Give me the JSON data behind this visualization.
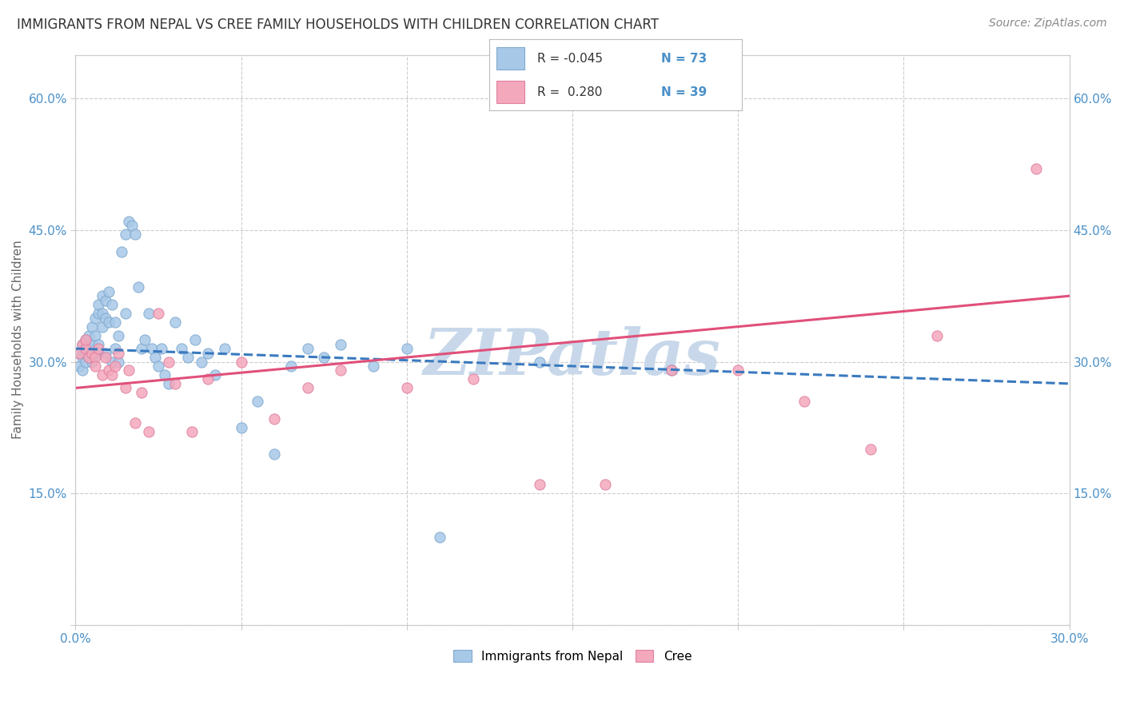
{
  "title": "IMMIGRANTS FROM NEPAL VS CREE FAMILY HOUSEHOLDS WITH CHILDREN CORRELATION CHART",
  "source_text": "Source: ZipAtlas.com",
  "ylabel": "Family Households with Children",
  "xlim": [
    0.0,
    0.3
  ],
  "ylim": [
    0.0,
    0.65
  ],
  "xticks": [
    0.0,
    0.05,
    0.1,
    0.15,
    0.2,
    0.25,
    0.3
  ],
  "xticklabels": [
    "0.0%",
    "",
    "",
    "",
    "",
    "",
    "30.0%"
  ],
  "yticks": [
    0.0,
    0.15,
    0.3,
    0.45,
    0.6
  ],
  "yticklabels": [
    "",
    "15.0%",
    "30.0%",
    "45.0%",
    "60.0%"
  ],
  "blue_color": "#a8c8e8",
  "blue_edge": "#80aad0",
  "pink_color": "#f4a8bc",
  "pink_edge": "#e080a0",
  "blue_line_color": "#3a7abf",
  "pink_line_color": "#e0507a",
  "tick_color": "#4a90c8",
  "grid_color": "#cccccc",
  "watermark_color": "#c8d8ea",
  "nepal_x": [
    0.001,
    0.001,
    0.002,
    0.002,
    0.002,
    0.003,
    0.003,
    0.003,
    0.003,
    0.004,
    0.004,
    0.004,
    0.005,
    0.005,
    0.005,
    0.006,
    0.006,
    0.006,
    0.006,
    0.007,
    0.007,
    0.007,
    0.007,
    0.008,
    0.008,
    0.008,
    0.009,
    0.009,
    0.009,
    0.01,
    0.01,
    0.011,
    0.011,
    0.012,
    0.012,
    0.013,
    0.013,
    0.014,
    0.015,
    0.015,
    0.016,
    0.017,
    0.018,
    0.019,
    0.02,
    0.021,
    0.022,
    0.023,
    0.024,
    0.025,
    0.026,
    0.027,
    0.028,
    0.03,
    0.032,
    0.034,
    0.036,
    0.038,
    0.04,
    0.042,
    0.045,
    0.05,
    0.055,
    0.06,
    0.065,
    0.07,
    0.075,
    0.08,
    0.09,
    0.1,
    0.11,
    0.14,
    0.18
  ],
  "nepal_y": [
    0.31,
    0.295,
    0.32,
    0.305,
    0.29,
    0.315,
    0.3,
    0.325,
    0.31,
    0.33,
    0.305,
    0.315,
    0.34,
    0.3,
    0.32,
    0.35,
    0.31,
    0.33,
    0.31,
    0.355,
    0.365,
    0.32,
    0.31,
    0.355,
    0.375,
    0.34,
    0.31,
    0.37,
    0.35,
    0.38,
    0.345,
    0.3,
    0.365,
    0.345,
    0.315,
    0.3,
    0.33,
    0.425,
    0.445,
    0.355,
    0.46,
    0.455,
    0.445,
    0.385,
    0.315,
    0.325,
    0.355,
    0.315,
    0.305,
    0.295,
    0.315,
    0.285,
    0.275,
    0.345,
    0.315,
    0.305,
    0.325,
    0.3,
    0.31,
    0.285,
    0.315,
    0.225,
    0.255,
    0.195,
    0.295,
    0.315,
    0.305,
    0.32,
    0.295,
    0.315,
    0.1,
    0.3,
    0.29
  ],
  "cree_x": [
    0.001,
    0.002,
    0.003,
    0.003,
    0.004,
    0.005,
    0.006,
    0.006,
    0.007,
    0.008,
    0.009,
    0.01,
    0.011,
    0.012,
    0.013,
    0.015,
    0.016,
    0.018,
    0.02,
    0.022,
    0.025,
    0.028,
    0.03,
    0.035,
    0.04,
    0.05,
    0.06,
    0.07,
    0.08,
    0.1,
    0.12,
    0.14,
    0.16,
    0.18,
    0.2,
    0.22,
    0.24,
    0.26,
    0.29
  ],
  "cree_y": [
    0.31,
    0.32,
    0.315,
    0.325,
    0.305,
    0.31,
    0.305,
    0.295,
    0.315,
    0.285,
    0.305,
    0.29,
    0.285,
    0.295,
    0.31,
    0.27,
    0.29,
    0.23,
    0.265,
    0.22,
    0.355,
    0.3,
    0.275,
    0.22,
    0.28,
    0.3,
    0.235,
    0.27,
    0.29,
    0.27,
    0.28,
    0.16,
    0.16,
    0.29,
    0.29,
    0.255,
    0.2,
    0.33,
    0.52
  ],
  "nepal_trend_x": [
    0.0,
    0.3
  ],
  "nepal_trend_y": [
    0.315,
    0.275
  ],
  "cree_trend_x": [
    0.0,
    0.3
  ],
  "cree_trend_y": [
    0.27,
    0.375
  ]
}
